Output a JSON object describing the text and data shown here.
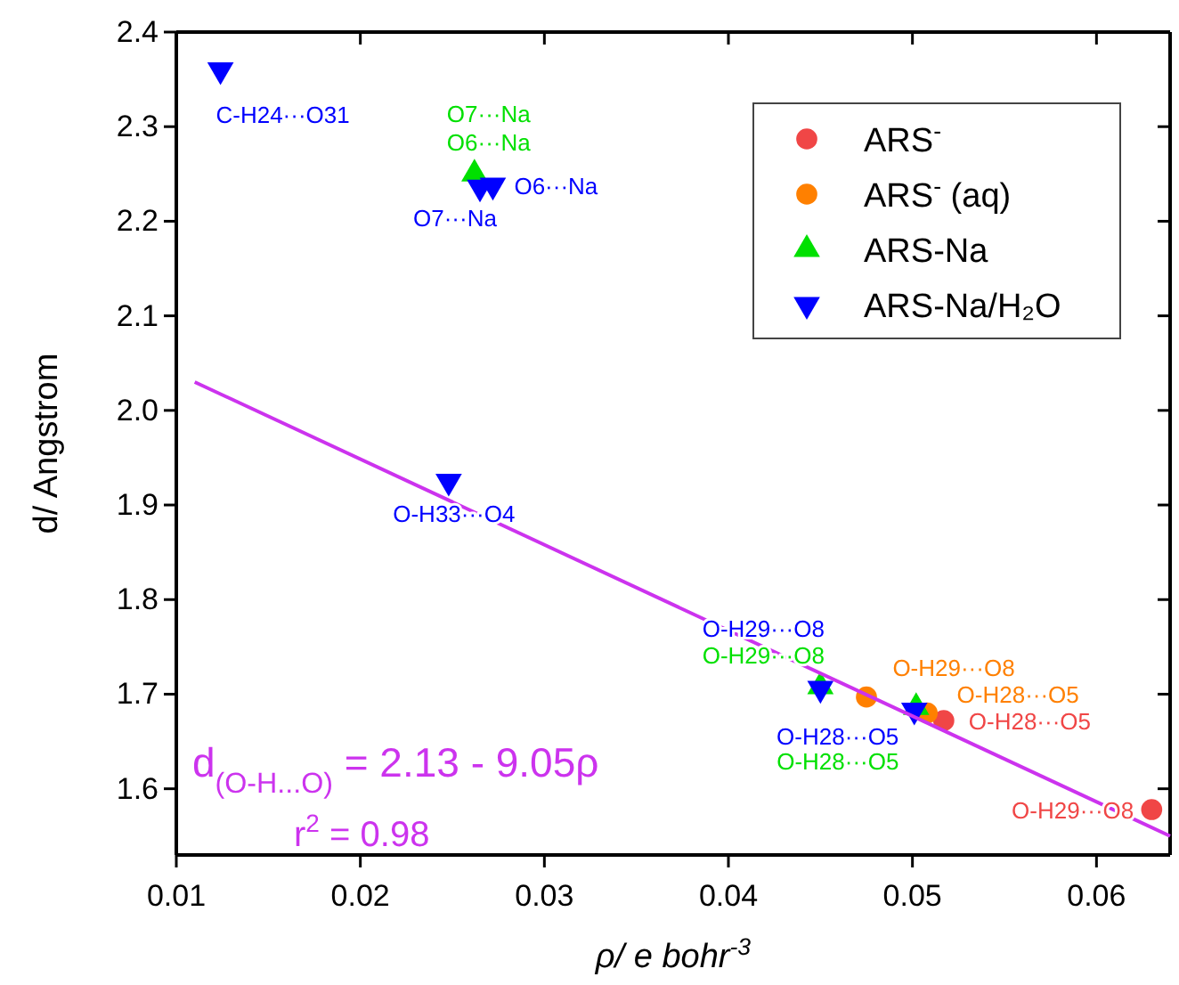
{
  "chart_data": {
    "type": "scatter",
    "xlabel": "ρ/ e bohr$^{-3}$",
    "ylabel": "d/ Angstrom",
    "xlim": [
      0.01,
      0.064
    ],
    "xticks": [
      0.01,
      0.02,
      0.03,
      0.04,
      0.05,
      0.06
    ],
    "ylim": [
      1.53,
      2.4
    ],
    "yticks": [
      1.6,
      1.7,
      1.8,
      1.9,
      {
        "value": 2,
        "label": "2.0"
      },
      2.1,
      2.2,
      2.3,
      2.4
    ],
    "grid": false,
    "legend": "top right",
    "series": [
      {
        "name": "ARS$^{-}$",
        "color": "#f04646",
        "marker": "circle",
        "x": [
          0.0517,
          0.063
        ],
        "values": [
          1.672,
          1.578
        ]
      },
      {
        "name": "ARS$^{-}$ (aq)",
        "color": "#ff8000",
        "marker": "circle",
        "x": [
          0.0475,
          0.0508
        ],
        "values": [
          1.697,
          1.68
        ]
      },
      {
        "name": "ARS-Na",
        "color": "#00e000",
        "marker": "triangle",
        "x": [
          0.045,
          0.0502,
          0.0262
        ],
        "values": [
          1.708,
          1.686,
          2.25
        ]
      },
      {
        "name": "ARS-Na/H₂O",
        "color": "#0000ff",
        "marker": "triangle-down",
        "x": [
          0.045,
          0.0501,
          0.0265,
          0.0272,
          0.0124,
          0.0248
        ],
        "values": [
          1.706,
          1.683,
          2.236,
          2.238,
          2.36,
          1.925
        ]
      },
      {
        "type": "line",
        "color": "#cc33ee",
        "marker": "none",
        "line_style": "solid",
        "x": [
          0.011,
          0.064
        ],
        "values": [
          2.03,
          1.55
        ]
      }
    ],
    "annotations": [
      {
        "text": "C-H24···O31",
        "x": 0.0124,
        "y": 2.36
      },
      {
        "text": "O7···Na",
        "x": 0.0262,
        "y": 2.25
      },
      {
        "text": "O6···Na",
        "x": 0.0262,
        "y": 2.25
      },
      {
        "text": "O6···Na",
        "x": 0.0272,
        "y": 2.238
      },
      {
        "text": "O7···Na",
        "x": 0.0265,
        "y": 2.236
      },
      {
        "text": "O-H33···O4",
        "x": 0.0248,
        "y": 1.925
      },
      {
        "text": "O-H29···O8",
        "x": 0.045,
        "y": 1.706
      },
      {
        "text": "O-H29···O8",
        "x": 0.045,
        "y": 1.708
      },
      {
        "text": "O-H28···O5",
        "x": 0.0501,
        "y": 1.683
      },
      {
        "text": "O-H28···O5",
        "x": 0.0502,
        "y": 1.686
      },
      {
        "text": "O-H29···O8",
        "x": 0.0475,
        "y": 1.697
      },
      {
        "text": "O-H28···O5",
        "x": 0.0508,
        "y": 1.68
      },
      {
        "text": "O-H28···O5",
        "x": 0.0517,
        "y": 1.672
      },
      {
        "text": "O-H29···O8",
        "x": 0.063,
        "y": 1.578
      },
      "d$_{(O-H...O)}$ = 2.13 - 9.05ρ",
      "r$^{2}$ = 0.98"
    ]
  }
}
